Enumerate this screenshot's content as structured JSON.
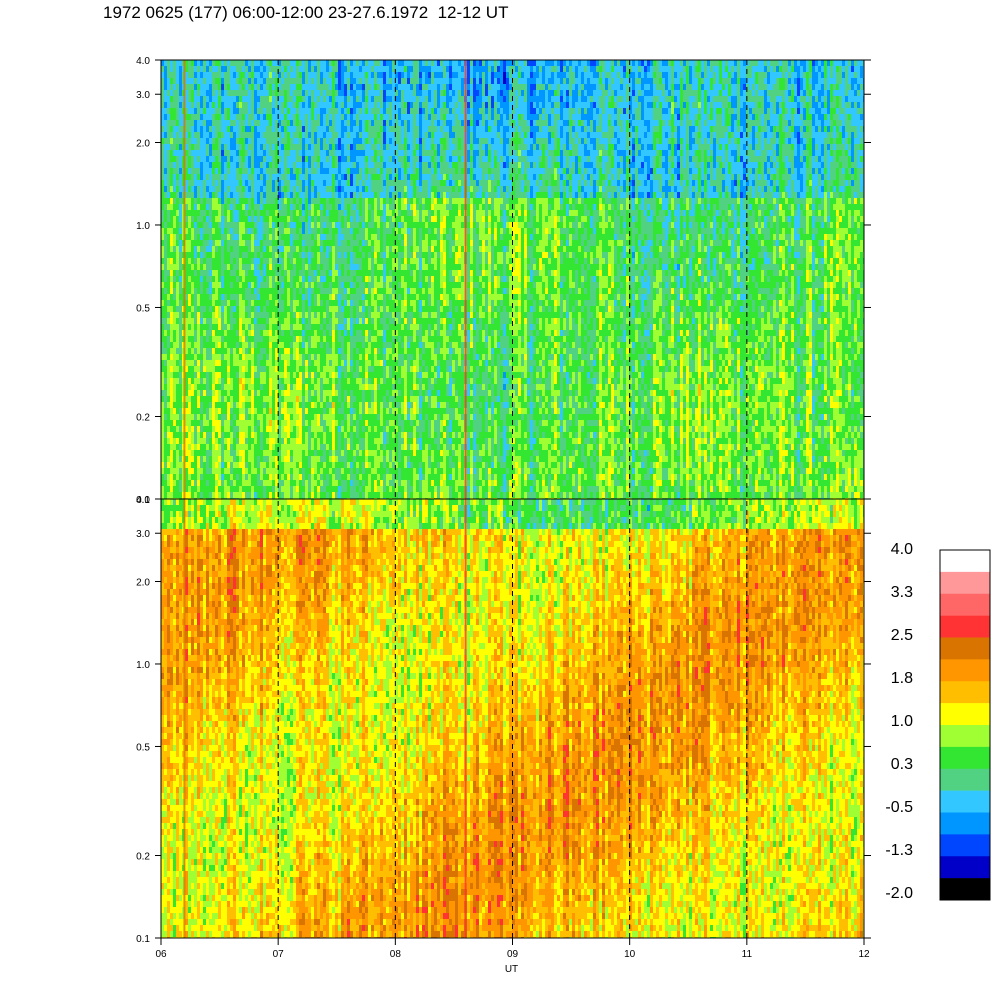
{
  "title": "1972 0625 (177) 06:00-12:00 23-27.6.1972  12-12 UT",
  "chart_data": [
    {
      "type": "heatmap",
      "panel": "upper",
      "y_scale": "log",
      "ylim": [
        0.1,
        4.0
      ],
      "y_ticks": [
        "4.0",
        "3.0",
        "2.0",
        "1.0",
        "0.5",
        "0.2",
        "0.1"
      ],
      "y_tick_values": [
        4.0,
        3.0,
        2.0,
        1.0,
        0.5,
        0.2,
        0.1
      ],
      "x_ticks": [
        "06",
        "07",
        "08",
        "09",
        "10",
        "11",
        "12"
      ],
      "x_tick_values": [
        6,
        7,
        8,
        9,
        10,
        11,
        12
      ],
      "xlim": [
        6,
        12
      ],
      "dominant_level_range": [
        0.3,
        1.0
      ],
      "notes": "green/yellow spectrogram, bluer at high values"
    },
    {
      "type": "heatmap",
      "panel": "lower",
      "y_scale": "log",
      "ylim": [
        0.1,
        4.0
      ],
      "y_ticks": [
        "4.0",
        "3.0",
        "2.0",
        "1.0",
        "0.5",
        "0.2",
        "0.1"
      ],
      "y_tick_values": [
        4.0,
        3.0,
        2.0,
        1.0,
        0.5,
        0.2,
        0.1
      ],
      "x_ticks": [
        "06",
        "07",
        "08",
        "09",
        "10",
        "11",
        "12"
      ],
      "x_tick_values": [
        6,
        7,
        8,
        9,
        10,
        11,
        12
      ],
      "xlim": [
        6,
        12
      ],
      "xlabel": "UT",
      "dominant_level_range": [
        1.0,
        2.2
      ],
      "notes": "yellow/orange spectrogram"
    }
  ],
  "dashed_hours": [
    7,
    8,
    9,
    10,
    11
  ],
  "colorbar": {
    "labels": [
      "4.0",
      "3.3",
      "2.5",
      "1.8",
      "1.0",
      "0.3",
      "-0.5",
      "-1.3",
      "-2.0"
    ],
    "label_values": [
      4.0,
      3.3,
      2.5,
      1.8,
      1.0,
      0.3,
      -0.5,
      -1.3,
      -2.0
    ],
    "colors": [
      "#ffffff",
      "#ff9999",
      "#ff6666",
      "#ff3333",
      "#d97400",
      "#ff9600",
      "#ffbe00",
      "#ffff00",
      "#a0ff32",
      "#32e632",
      "#50d282",
      "#32c8ff",
      "#0096ff",
      "#0046ff",
      "#0000c8",
      "#000000"
    ]
  }
}
